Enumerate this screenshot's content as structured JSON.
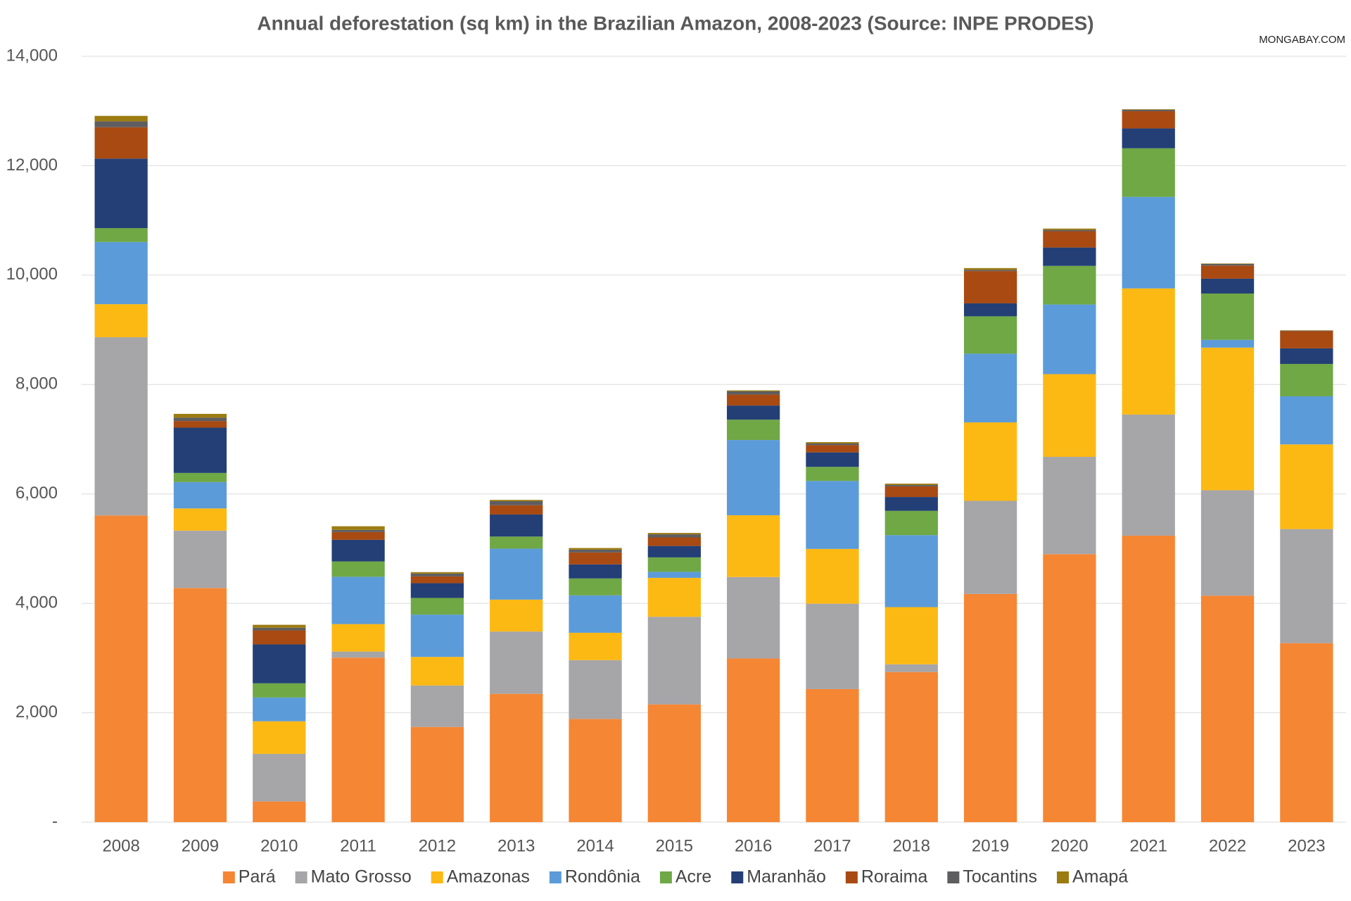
{
  "chart_data": {
    "type": "stacked-bar",
    "title": "Annual deforestation (sq km) in the Brazilian Amazon, 2008-2023 (Source: INPE PRODES)",
    "watermark": "MONGABAY.COM",
    "categories": [
      "2008",
      "2009",
      "2010",
      "2011",
      "2012",
      "2013",
      "2014",
      "2015",
      "2016",
      "2017",
      "2018",
      "2019",
      "2020",
      "2021",
      "2022",
      "2023"
    ],
    "series": [
      {
        "name": "Pará",
        "color": "#f58634",
        "values": [
          5607,
          4281,
          378,
          3008,
          1741,
          2346,
          1887,
          2153,
          2992,
          2433,
          2744,
          4172,
          4899,
          5238,
          4141,
          3272
        ]
      },
      {
        "name": "Mato Grosso",
        "color": "#a6a5a8",
        "values": [
          3258,
          1049,
          871,
          111,
          757,
          1139,
          1075,
          1601,
          1489,
          1561,
          142,
          1702,
          1779,
          2213,
          1927,
          2086
        ]
      },
      {
        "name": "Amazonas",
        "color": "#fdb913",
        "values": [
          604,
          405,
          595,
          502,
          523,
          583,
          500,
          712,
          1129,
          1001,
          1045,
          1434,
          1512,
          2306,
          2607,
          1548
        ]
      },
      {
        "name": "Rondônia",
        "color": "#5b9bd9",
        "values": [
          1136,
          482,
          435,
          865,
          773,
          932,
          684,
          110,
          1376,
          1243,
          1316,
          1257,
          1273,
          1673,
          142,
          879
        ]
      },
      {
        "name": "Acre",
        "color": "#6fa845",
        "values": [
          254,
          167,
          259,
          280,
          305,
          221,
          309,
          264,
          372,
          257,
          444,
          682,
          706,
          889,
          847,
          592
        ]
      },
      {
        "name": "Maranhão",
        "color": "#233f76",
        "values": [
          1271,
          828,
          712,
          396,
          269,
          403,
          257,
          209,
          258,
          265,
          253,
          237,
          336,
          363,
          271,
          284
        ]
      },
      {
        "name": "Roraima",
        "color": "#a84a12",
        "values": [
          574,
          121,
          256,
          141,
          124,
          170,
          219,
          156,
          202,
          132,
          195,
          590,
          297,
          315,
          240,
          315
        ]
      },
      {
        "name": "Tocantins",
        "color": "#5e5e60",
        "values": [
          107,
          61,
          49,
          40,
          52,
          74,
          50,
          57,
          58,
          31,
          25,
          23,
          25,
          27,
          29,
          9
        ]
      },
      {
        "name": "Amapá",
        "color": "#9c7b10",
        "values": [
          100,
          70,
          53,
          66,
          27,
          23,
          31,
          25,
          17,
          24,
          24,
          32,
          24,
          9,
          8,
          7
        ]
      }
    ],
    "ylim": [
      0,
      14000
    ],
    "yticks": [
      {
        "value": 0,
        "label": "-"
      },
      {
        "value": 2000,
        "label": "2,000"
      },
      {
        "value": 4000,
        "label": "4,000"
      },
      {
        "value": 6000,
        "label": "6,000"
      },
      {
        "value": 8000,
        "label": "8,000"
      },
      {
        "value": 10000,
        "label": "10,000"
      },
      {
        "value": 12000,
        "label": "12,000"
      },
      {
        "value": 14000,
        "label": "14,000"
      }
    ],
    "grid": true
  }
}
